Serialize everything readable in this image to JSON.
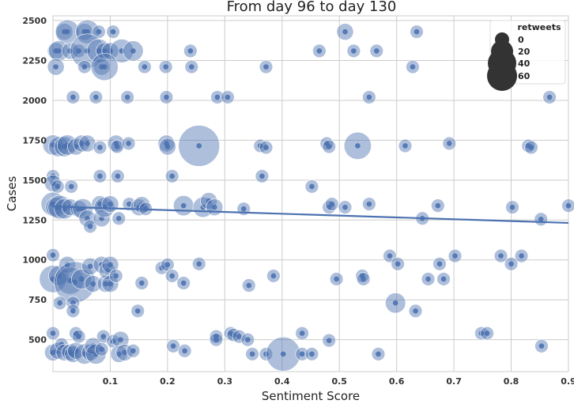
{
  "chart_data": {
    "type": "scatter",
    "title": "From day 96 to day 130",
    "xlabel": "Sentiment Score",
    "ylabel": "Cases",
    "xlim": [
      0.0,
      0.9
    ],
    "ylim": [
      300,
      2530
    ],
    "xticks": [
      0.1,
      0.2,
      0.3,
      0.4,
      0.5,
      0.6,
      0.7,
      0.8,
      0.9
    ],
    "xtick_labels": [
      "0.1",
      "0.2",
      "0.3",
      "0.4",
      "0.5",
      "0.6",
      "0.7",
      "0.8",
      "0.9"
    ],
    "yticks": [
      500,
      750,
      1000,
      1250,
      1500,
      1750,
      2000,
      2250,
      2500
    ],
    "ytick_labels": [
      "500",
      "750",
      "1000",
      "1250",
      "1500",
      "1750",
      "2000",
      "2250",
      "2500"
    ],
    "grid": true,
    "point_color": "#4c72b0",
    "line_color": "#4c72b0",
    "legend": {
      "title": "retweets",
      "placement": "top-right",
      "entries": [
        {
          "label": "0",
          "size": 0
        },
        {
          "label": "20",
          "size": 20
        },
        {
          "label": "40",
          "size": 40
        },
        {
          "label": "60",
          "size": 60
        }
      ]
    },
    "regression": {
      "x": [
        0.0,
        0.9
      ],
      "y": [
        1335,
        1232
      ]
    },
    "points": [
      {
        "x": 0.02,
        "y": 2430,
        "r": 3
      },
      {
        "x": 0.025,
        "y": 2430,
        "r": 5
      },
      {
        "x": 0.055,
        "y": 2430,
        "r": 3
      },
      {
        "x": 0.06,
        "y": 2430,
        "r": 5
      },
      {
        "x": 0.08,
        "y": 2430,
        "r": 2
      },
      {
        "x": 0.105,
        "y": 2430,
        "r": 2
      },
      {
        "x": 0.51,
        "y": 2430,
        "r": 3
      },
      {
        "x": 0.635,
        "y": 2430,
        "r": 2
      },
      {
        "x": 0.005,
        "y": 2310,
        "r": 3
      },
      {
        "x": 0.01,
        "y": 2310,
        "r": 4
      },
      {
        "x": 0.03,
        "y": 2310,
        "r": 3
      },
      {
        "x": 0.045,
        "y": 2310,
        "r": 2
      },
      {
        "x": 0.06,
        "y": 2310,
        "r": 8
      },
      {
        "x": 0.08,
        "y": 2310,
        "r": 5
      },
      {
        "x": 0.09,
        "y": 2310,
        "r": 3
      },
      {
        "x": 0.1,
        "y": 2310,
        "r": 3
      },
      {
        "x": 0.12,
        "y": 2310,
        "r": 5
      },
      {
        "x": 0.14,
        "y": 2310,
        "r": 4
      },
      {
        "x": 0.24,
        "y": 2310,
        "r": 2
      },
      {
        "x": 0.465,
        "y": 2310,
        "r": 2
      },
      {
        "x": 0.525,
        "y": 2310,
        "r": 2
      },
      {
        "x": 0.565,
        "y": 2310,
        "r": 2
      },
      {
        "x": 0.005,
        "y": 2210,
        "r": 3
      },
      {
        "x": 0.055,
        "y": 2210,
        "r": 2
      },
      {
        "x": 0.085,
        "y": 2210,
        "r": 3
      },
      {
        "x": 0.09,
        "y": 2210,
        "r": 6
      },
      {
        "x": 0.16,
        "y": 2210,
        "r": 2
      },
      {
        "x": 0.197,
        "y": 2210,
        "r": 2
      },
      {
        "x": 0.242,
        "y": 2210,
        "r": 2
      },
      {
        "x": 0.372,
        "y": 2210,
        "r": 2
      },
      {
        "x": 0.628,
        "y": 2210,
        "r": 2
      },
      {
        "x": 0.035,
        "y": 2020,
        "r": 2
      },
      {
        "x": 0.075,
        "y": 2020,
        "r": 2
      },
      {
        "x": 0.13,
        "y": 2020,
        "r": 2
      },
      {
        "x": 0.198,
        "y": 2020,
        "r": 2
      },
      {
        "x": 0.287,
        "y": 2020,
        "r": 2
      },
      {
        "x": 0.305,
        "y": 2020,
        "r": 2
      },
      {
        "x": 0.552,
        "y": 2020,
        "r": 2
      },
      {
        "x": 0.867,
        "y": 2020,
        "r": 2
      },
      {
        "x": 0.0,
        "y": 1720,
        "r": 4
      },
      {
        "x": 0.01,
        "y": 1710,
        "r": 4
      },
      {
        "x": 0.02,
        "y": 1710,
        "r": 4
      },
      {
        "x": 0.025,
        "y": 1720,
        "r": 4
      },
      {
        "x": 0.04,
        "y": 1710,
        "r": 3
      },
      {
        "x": 0.05,
        "y": 1730,
        "r": 3
      },
      {
        "x": 0.06,
        "y": 1730,
        "r": 3
      },
      {
        "x": 0.082,
        "y": 1705,
        "r": 2
      },
      {
        "x": 0.11,
        "y": 1730,
        "r": 3
      },
      {
        "x": 0.112,
        "y": 1710,
        "r": 2
      },
      {
        "x": 0.132,
        "y": 1730,
        "r": 2
      },
      {
        "x": 0.198,
        "y": 1730,
        "r": 3
      },
      {
        "x": 0.2,
        "y": 1710,
        "r": 3
      },
      {
        "x": 0.255,
        "y": 1715,
        "r": 10
      },
      {
        "x": 0.362,
        "y": 1715,
        "r": 2
      },
      {
        "x": 0.372,
        "y": 1705,
        "r": 2
      },
      {
        "x": 0.478,
        "y": 1730,
        "r": 2
      },
      {
        "x": 0.482,
        "y": 1710,
        "r": 2
      },
      {
        "x": 0.532,
        "y": 1715,
        "r": 6
      },
      {
        "x": 0.615,
        "y": 1715,
        "r": 2
      },
      {
        "x": 0.692,
        "y": 1730,
        "r": 2
      },
      {
        "x": 0.83,
        "y": 1715,
        "r": 2
      },
      {
        "x": 0.835,
        "y": 1705,
        "r": 2
      },
      {
        "x": 0.0,
        "y": 1525,
        "r": 2
      },
      {
        "x": 0.082,
        "y": 1525,
        "r": 2
      },
      {
        "x": 0.113,
        "y": 1525,
        "r": 2
      },
      {
        "x": 0.208,
        "y": 1525,
        "r": 2
      },
      {
        "x": 0.365,
        "y": 1525,
        "r": 2
      },
      {
        "x": 0.0,
        "y": 1480,
        "r": 3
      },
      {
        "x": 0.008,
        "y": 1460,
        "r": 2
      },
      {
        "x": 0.032,
        "y": 1460,
        "r": 2
      },
      {
        "x": 0.452,
        "y": 1460,
        "r": 2
      },
      {
        "x": 0.0,
        "y": 1350,
        "r": 5
      },
      {
        "x": 0.005,
        "y": 1330,
        "r": 4
      },
      {
        "x": 0.012,
        "y": 1330,
        "r": 5
      },
      {
        "x": 0.02,
        "y": 1320,
        "r": 4
      },
      {
        "x": 0.03,
        "y": 1330,
        "r": 3
      },
      {
        "x": 0.045,
        "y": 1320,
        "r": 3
      },
      {
        "x": 0.052,
        "y": 1320,
        "r": 4
      },
      {
        "x": 0.06,
        "y": 1260,
        "r": 3
      },
      {
        "x": 0.065,
        "y": 1210,
        "r": 2
      },
      {
        "x": 0.082,
        "y": 1350,
        "r": 3
      },
      {
        "x": 0.085,
        "y": 1260,
        "r": 3
      },
      {
        "x": 0.09,
        "y": 1330,
        "r": 4
      },
      {
        "x": 0.1,
        "y": 1350,
        "r": 3
      },
      {
        "x": 0.115,
        "y": 1260,
        "r": 2
      },
      {
        "x": 0.133,
        "y": 1350,
        "r": 2
      },
      {
        "x": 0.15,
        "y": 1330,
        "r": 3
      },
      {
        "x": 0.155,
        "y": 1345,
        "r": 3
      },
      {
        "x": 0.162,
        "y": 1320,
        "r": 2
      },
      {
        "x": 0.228,
        "y": 1340,
        "r": 4
      },
      {
        "x": 0.262,
        "y": 1330,
        "r": 4
      },
      {
        "x": 0.272,
        "y": 1370,
        "r": 3
      },
      {
        "x": 0.282,
        "y": 1330,
        "r": 3
      },
      {
        "x": 0.333,
        "y": 1320,
        "r": 2
      },
      {
        "x": 0.482,
        "y": 1330,
        "r": 2
      },
      {
        "x": 0.487,
        "y": 1350,
        "r": 2
      },
      {
        "x": 0.51,
        "y": 1330,
        "r": 2
      },
      {
        "x": 0.552,
        "y": 1350,
        "r": 2
      },
      {
        "x": 0.645,
        "y": 1260,
        "r": 2
      },
      {
        "x": 0.672,
        "y": 1340,
        "r": 2
      },
      {
        "x": 0.802,
        "y": 1330,
        "r": 2
      },
      {
        "x": 0.852,
        "y": 1255,
        "r": 2
      },
      {
        "x": 0.9,
        "y": 1340,
        "r": 2
      },
      {
        "x": 0.0,
        "y": 1030,
        "r": 2
      },
      {
        "x": 0.0,
        "y": 880,
        "r": 6
      },
      {
        "x": 0.01,
        "y": 900,
        "r": 4
      },
      {
        "x": 0.025,
        "y": 970,
        "r": 3
      },
      {
        "x": 0.03,
        "y": 870,
        "r": 6
      },
      {
        "x": 0.038,
        "y": 860,
        "r": 10
      },
      {
        "x": 0.05,
        "y": 880,
        "r": 4
      },
      {
        "x": 0.065,
        "y": 960,
        "r": 3
      },
      {
        "x": 0.07,
        "y": 850,
        "r": 3
      },
      {
        "x": 0.085,
        "y": 970,
        "r": 3
      },
      {
        "x": 0.092,
        "y": 850,
        "r": 3
      },
      {
        "x": 0.095,
        "y": 930,
        "r": 3
      },
      {
        "x": 0.1,
        "y": 850,
        "r": 3
      },
      {
        "x": 0.1,
        "y": 970,
        "r": 3
      },
      {
        "x": 0.11,
        "y": 900,
        "r": 2
      },
      {
        "x": 0.155,
        "y": 855,
        "r": 2
      },
      {
        "x": 0.19,
        "y": 950,
        "r": 2
      },
      {
        "x": 0.2,
        "y": 970,
        "r": 2
      },
      {
        "x": 0.208,
        "y": 900,
        "r": 2
      },
      {
        "x": 0.228,
        "y": 855,
        "r": 2
      },
      {
        "x": 0.255,
        "y": 975,
        "r": 2
      },
      {
        "x": 0.342,
        "y": 840,
        "r": 2
      },
      {
        "x": 0.385,
        "y": 900,
        "r": 2
      },
      {
        "x": 0.495,
        "y": 880,
        "r": 2
      },
      {
        "x": 0.54,
        "y": 900,
        "r": 2
      },
      {
        "x": 0.542,
        "y": 880,
        "r": 2
      },
      {
        "x": 0.588,
        "y": 1025,
        "r": 2
      },
      {
        "x": 0.602,
        "y": 975,
        "r": 2
      },
      {
        "x": 0.655,
        "y": 880,
        "r": 2
      },
      {
        "x": 0.675,
        "y": 975,
        "r": 2
      },
      {
        "x": 0.682,
        "y": 880,
        "r": 2
      },
      {
        "x": 0.702,
        "y": 1025,
        "r": 2
      },
      {
        "x": 0.782,
        "y": 1025,
        "r": 2
      },
      {
        "x": 0.8,
        "y": 975,
        "r": 2
      },
      {
        "x": 0.818,
        "y": 1025,
        "r": 2
      },
      {
        "x": 0.012,
        "y": 730,
        "r": 2
      },
      {
        "x": 0.035,
        "y": 730,
        "r": 2
      },
      {
        "x": 0.035,
        "y": 680,
        "r": 2
      },
      {
        "x": 0.148,
        "y": 680,
        "r": 2
      },
      {
        "x": 0.598,
        "y": 730,
        "r": 4
      },
      {
        "x": 0.633,
        "y": 680,
        "r": 2
      },
      {
        "x": 0.0,
        "y": 540,
        "r": 2
      },
      {
        "x": 0.04,
        "y": 540,
        "r": 2
      },
      {
        "x": 0.045,
        "y": 520,
        "r": 2
      },
      {
        "x": 0.088,
        "y": 520,
        "r": 2
      },
      {
        "x": 0.105,
        "y": 490,
        "r": 2
      },
      {
        "x": 0.118,
        "y": 500,
        "r": 3
      },
      {
        "x": 0.21,
        "y": 460,
        "r": 2
      },
      {
        "x": 0.285,
        "y": 520,
        "r": 2
      },
      {
        "x": 0.285,
        "y": 500,
        "r": 2
      },
      {
        "x": 0.31,
        "y": 540,
        "r": 2
      },
      {
        "x": 0.315,
        "y": 530,
        "r": 2
      },
      {
        "x": 0.325,
        "y": 520,
        "r": 2
      },
      {
        "x": 0.34,
        "y": 500,
        "r": 2
      },
      {
        "x": 0.435,
        "y": 540,
        "r": 2
      },
      {
        "x": 0.482,
        "y": 495,
        "r": 2
      },
      {
        "x": 0.748,
        "y": 540,
        "r": 2
      },
      {
        "x": 0.758,
        "y": 540,
        "r": 2
      },
      {
        "x": 0.853,
        "y": 460,
        "r": 2
      },
      {
        "x": 0.0,
        "y": 420,
        "r": 3
      },
      {
        "x": 0.008,
        "y": 430,
        "r": 3
      },
      {
        "x": 0.015,
        "y": 470,
        "r": 2
      },
      {
        "x": 0.02,
        "y": 420,
        "r": 3
      },
      {
        "x": 0.03,
        "y": 420,
        "r": 3
      },
      {
        "x": 0.035,
        "y": 410,
        "r": 3
      },
      {
        "x": 0.04,
        "y": 430,
        "r": 3
      },
      {
        "x": 0.055,
        "y": 410,
        "r": 4
      },
      {
        "x": 0.065,
        "y": 420,
        "r": 3
      },
      {
        "x": 0.07,
        "y": 460,
        "r": 3
      },
      {
        "x": 0.075,
        "y": 410,
        "r": 4
      },
      {
        "x": 0.085,
        "y": 440,
        "r": 2
      },
      {
        "x": 0.115,
        "y": 410,
        "r": 3
      },
      {
        "x": 0.125,
        "y": 420,
        "r": 3
      },
      {
        "x": 0.14,
        "y": 430,
        "r": 2
      },
      {
        "x": 0.23,
        "y": 430,
        "r": 2
      },
      {
        "x": 0.348,
        "y": 410,
        "r": 2
      },
      {
        "x": 0.372,
        "y": 410,
        "r": 2
      },
      {
        "x": 0.402,
        "y": 410,
        "r": 8
      },
      {
        "x": 0.435,
        "y": 410,
        "r": 2
      },
      {
        "x": 0.452,
        "y": 410,
        "r": 2
      },
      {
        "x": 0.568,
        "y": 410,
        "r": 2
      }
    ]
  }
}
